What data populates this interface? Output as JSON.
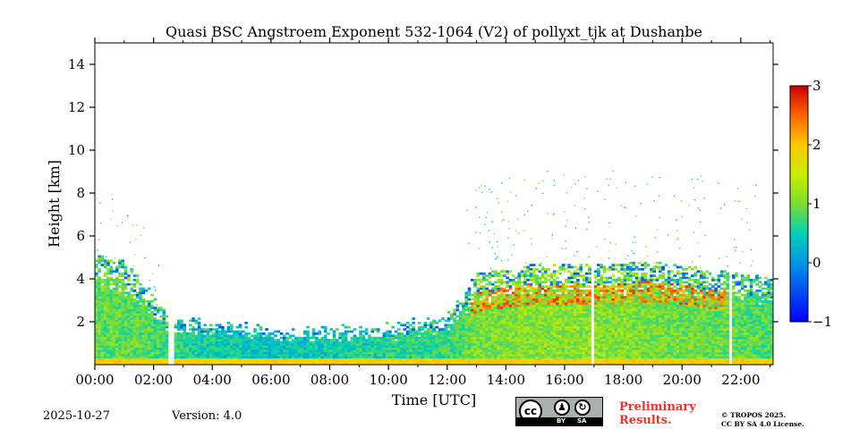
{
  "chart_data": {
    "type": "heatmap",
    "title": "Quasi BSC Angstroem Exponent 532-1064 (V2) of pollyxt_tjk at Dushanbe",
    "xlabel": "Time [UTC]",
    "ylabel": "Height [km]",
    "xlim": [
      0,
      23.1
    ],
    "ylim": [
      0,
      15
    ],
    "x_ticks": [
      "00:00",
      "02:00",
      "04:00",
      "06:00",
      "08:00",
      "10:00",
      "12:00",
      "14:00",
      "16:00",
      "18:00",
      "20:00",
      "22:00"
    ],
    "y_ticks": [
      "2",
      "4",
      "6",
      "8",
      "10",
      "12",
      "14"
    ],
    "colorbar": {
      "min": -1,
      "max": 3,
      "ticks": [
        "3",
        "2",
        "1",
        "0",
        "−1"
      ],
      "colormap": "jet"
    },
    "data_gaps_hours": [
      2.6,
      16.95,
      21.65
    ],
    "profile": [
      {
        "hours": 0.0,
        "top_km": 4.5,
        "mean": 0.9
      },
      {
        "hours": 1.0,
        "top_km": 4.2,
        "mean": 0.9
      },
      {
        "hours": 1.8,
        "top_km": 3.0,
        "mean": 0.8
      },
      {
        "hours": 2.5,
        "top_km": 1.7,
        "mean": 0.7
      },
      {
        "hours": 4.0,
        "top_km": 1.6,
        "mean": 0.5
      },
      {
        "hours": 6.0,
        "top_km": 1.3,
        "mean": 0.4
      },
      {
        "hours": 8.0,
        "top_km": 1.3,
        "mean": 0.5
      },
      {
        "hours": 10.0,
        "top_km": 1.4,
        "mean": 0.6
      },
      {
        "hours": 12.0,
        "top_km": 1.8,
        "mean": 0.7
      },
      {
        "hours": 13.0,
        "top_km": 3.6,
        "mean": 1.0
      },
      {
        "hours": 15.0,
        "top_km": 4.1,
        "mean": 1.1
      },
      {
        "hours": 17.0,
        "top_km": 4.0,
        "mean": 1.1
      },
      {
        "hours": 19.0,
        "top_km": 4.2,
        "mean": 1.0
      },
      {
        "hours": 21.5,
        "top_km": 3.7,
        "mean": 0.9
      },
      {
        "hours": 23.1,
        "top_km": 3.4,
        "mean": 0.8
      }
    ]
  },
  "footer": {
    "date": "2025-10-27",
    "version": "Version: 4.0",
    "preliminary_line1": "Preliminary",
    "preliminary_line2": "Results.",
    "copyright_line1": "© TROPOS 2025.",
    "copyright_line2": "CC BY SA 4.0 License.",
    "license_badge": {
      "cc": "cc",
      "by": "BY",
      "sa": "SA"
    }
  }
}
